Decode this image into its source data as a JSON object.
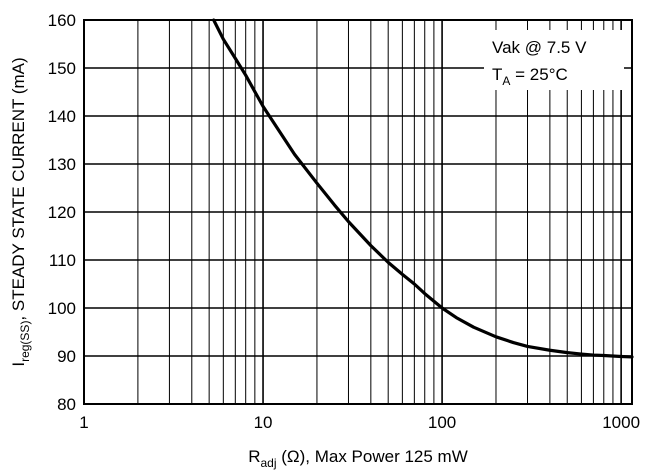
{
  "chart_data": {
    "type": "line",
    "x_scale": "log",
    "xlim": [
      1,
      1150
    ],
    "ylim": [
      80,
      160
    ],
    "x_ticks": [
      1,
      10,
      100,
      1000
    ],
    "x_tick_labels": [
      "1",
      "10",
      "100",
      "1000"
    ],
    "y_ticks": [
      80,
      90,
      100,
      110,
      120,
      130,
      140,
      150,
      160
    ],
    "y_tick_labels": [
      "80",
      "90",
      "100",
      "110",
      "120",
      "130",
      "140",
      "150",
      "160"
    ],
    "grid": true,
    "xlabel": {
      "main": "R",
      "sub": "adj",
      "rest": " (Ω), Max Power 125 mW"
    },
    "ylabel": {
      "main": "I",
      "sub": "reg(SS)",
      "rest": ", STEADY STATE CURRENT (mA)"
    },
    "annotation": {
      "line1": "Vak @ 7.5 V",
      "line2_main": "T",
      "line2_sub": "A",
      "line2_rest": " = 25°C",
      "placement": "top-right"
    },
    "series": [
      {
        "x": [
          5.3,
          6,
          7,
          8,
          10,
          12,
          15,
          20,
          25,
          30,
          40,
          50,
          60,
          70,
          80,
          100,
          120,
          150,
          200,
          250,
          300,
          400,
          500,
          600,
          700,
          800,
          1000,
          1150
        ],
        "y": [
          160,
          156,
          152,
          148.5,
          142,
          137.5,
          132,
          126,
          121.5,
          118,
          113,
          109.5,
          107,
          105,
          103,
          100,
          98,
          96,
          94,
          92.8,
          92,
          91.2,
          90.7,
          90.4,
          90.2,
          90.1,
          89.9,
          89.8
        ]
      }
    ]
  }
}
